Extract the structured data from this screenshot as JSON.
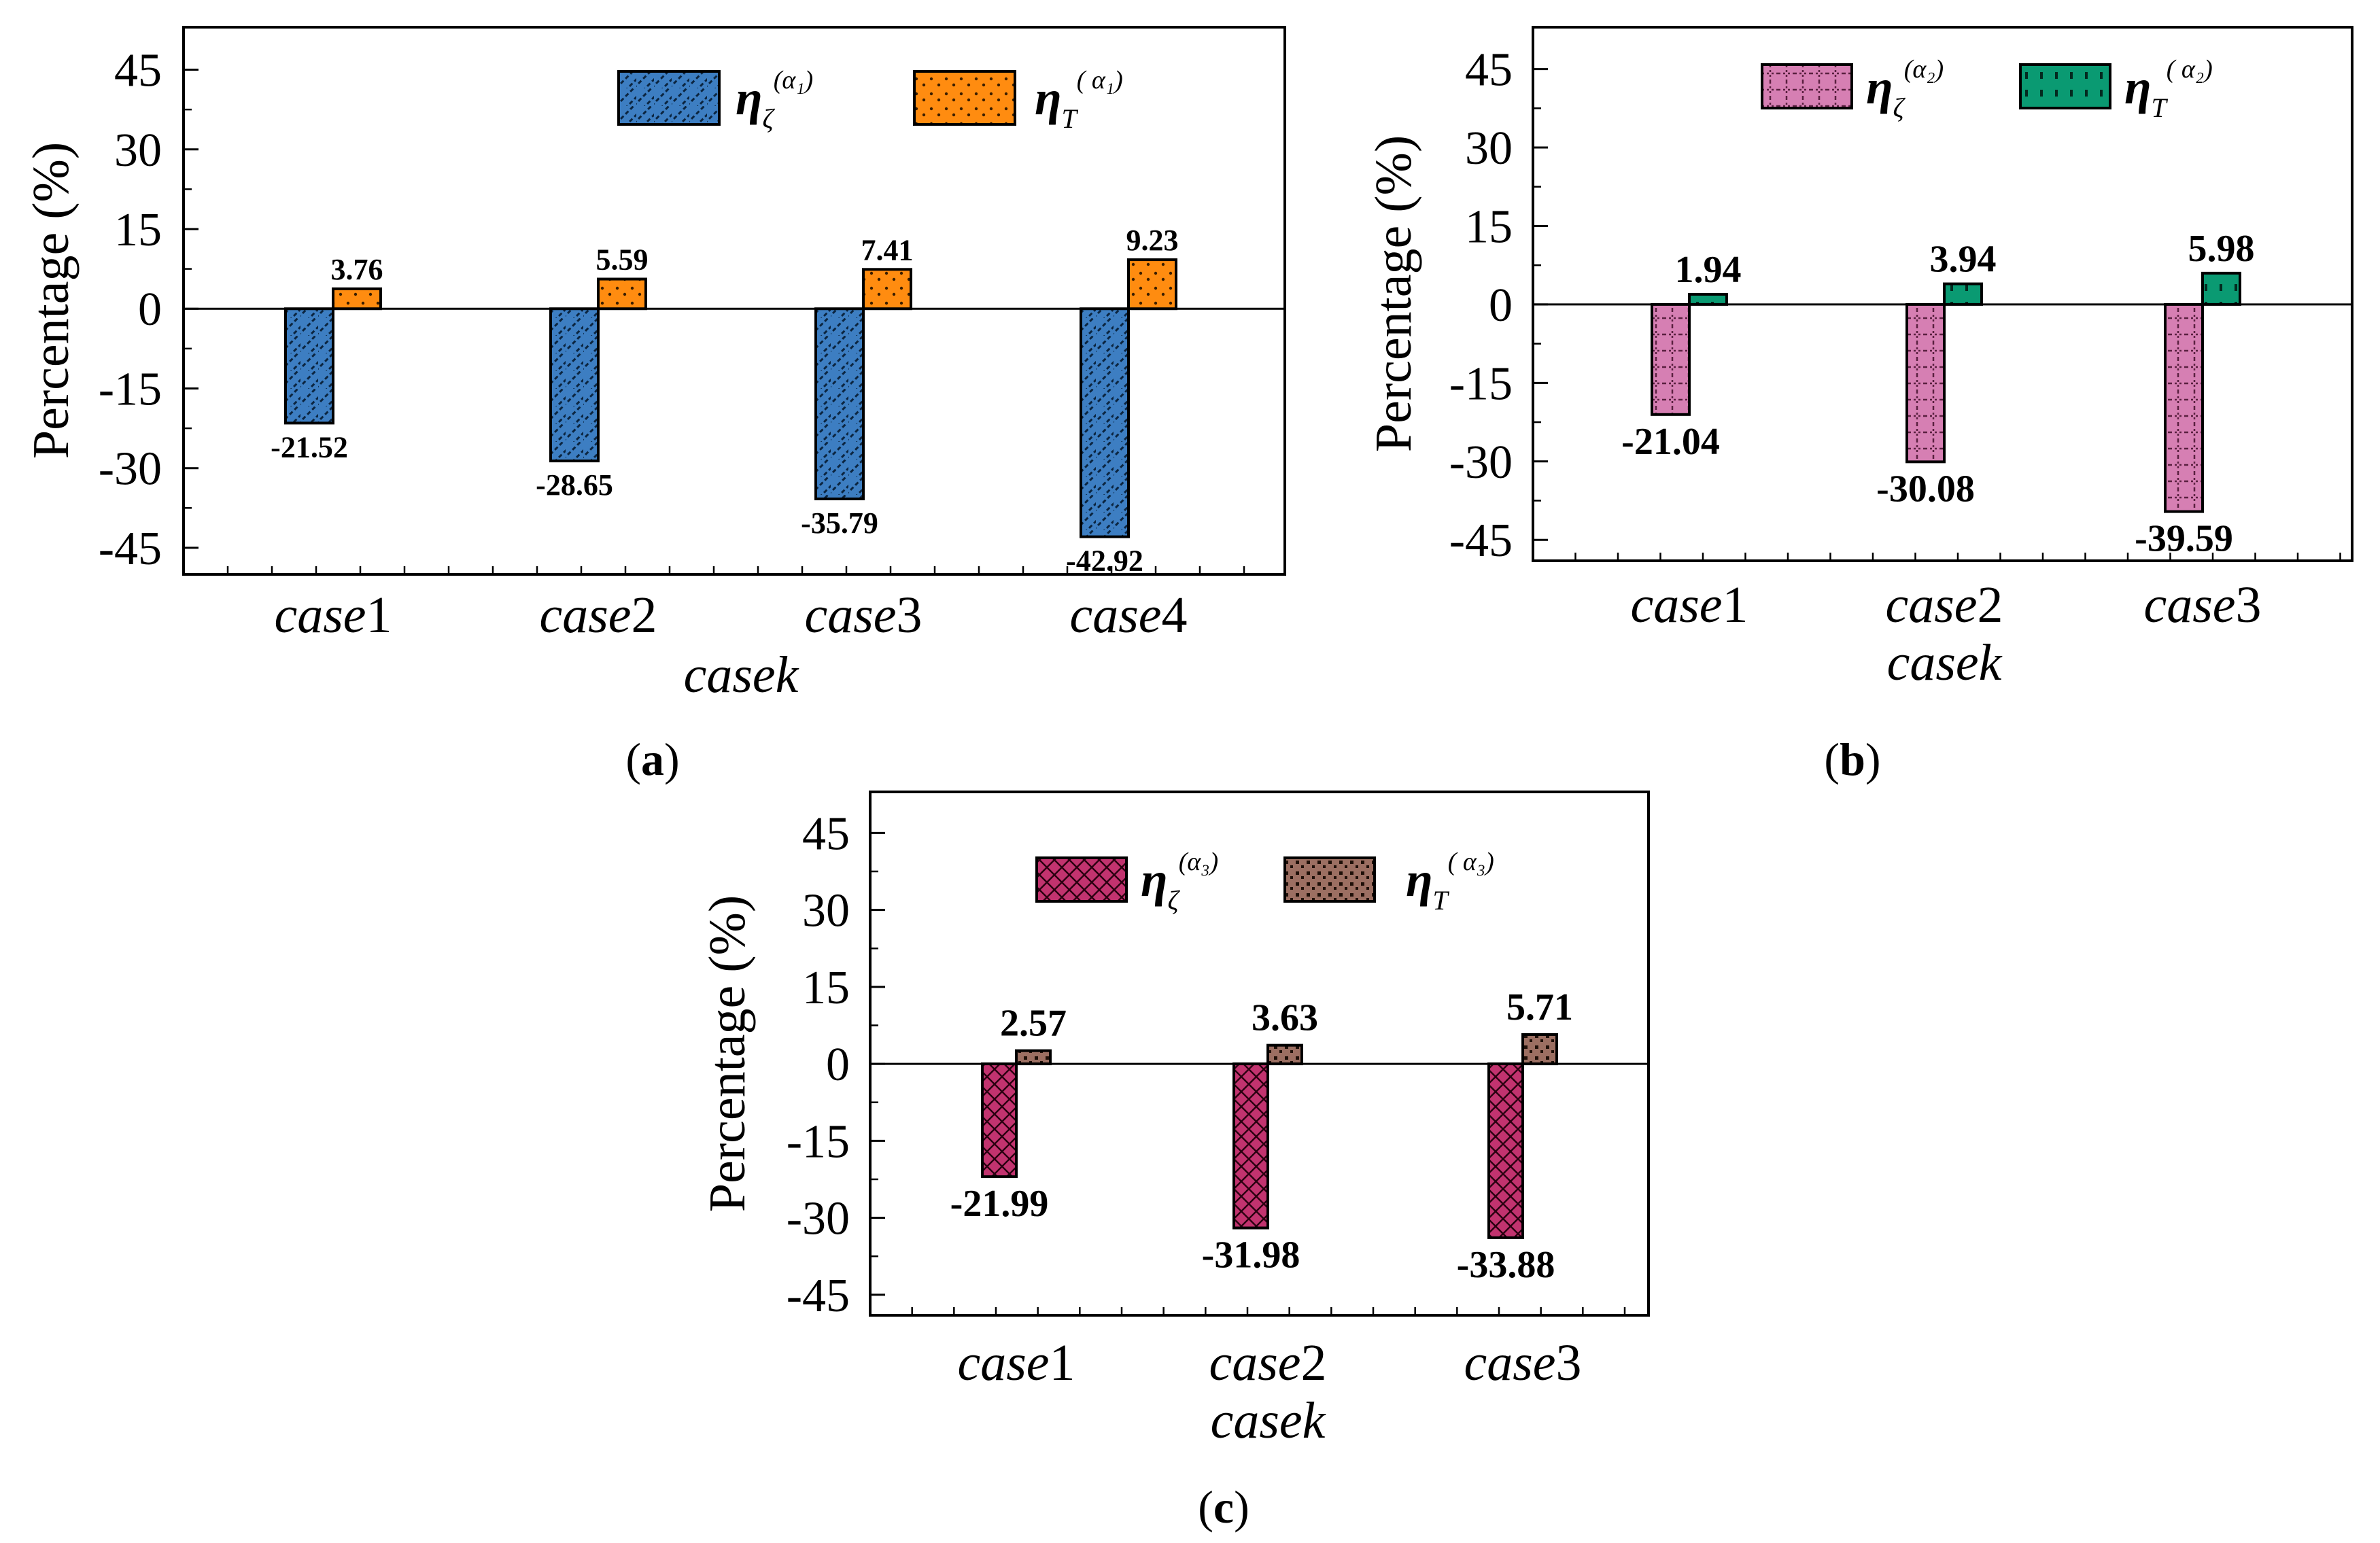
{
  "chart_data": [
    {
      "type": "bar",
      "panel_label": "a",
      "categories": [
        "case1",
        "case2",
        "case3",
        "case4"
      ],
      "category_parts": [
        [
          "case",
          "1"
        ],
        [
          "case",
          "2"
        ],
        [
          "case",
          "3"
        ],
        [
          "case",
          "4"
        ]
      ],
      "xlabel": "casek",
      "ylabel": "Percentage (%)",
      "ylim": [
        -50,
        53
      ],
      "yticks": [
        45,
        30,
        15,
        0,
        -15,
        -30,
        -45
      ],
      "yticklabels": [
        "45",
        "30",
        "15",
        "0",
        "-15",
        "-30",
        "-45"
      ],
      "legend_position": "top-right",
      "series": [
        {
          "name": "η_ζ^(α1)",
          "legend": {
            "symbol": "η",
            "sub": "ζ",
            "sup": "(α₁)"
          },
          "values": [
            -21.52,
            -28.65,
            -35.79,
            -42.92
          ],
          "labels": [
            "-21.52",
            "-28.65",
            "-35.79",
            "-42.92"
          ],
          "color": "#3d7ec2",
          "pattern": "diagonal-hatch"
        },
        {
          "name": "η_T^(α1)",
          "legend": {
            "symbol": "η",
            "sub": "T",
            "sup": "( α₁)"
          },
          "values": [
            3.76,
            5.59,
            7.41,
            9.23
          ],
          "labels": [
            "3.76",
            "5.59",
            "7.41",
            "9.23"
          ],
          "color": "#ff8c10",
          "pattern": "dots"
        }
      ]
    },
    {
      "type": "bar",
      "panel_label": "b",
      "categories": [
        "case1",
        "case2",
        "case3"
      ],
      "category_parts": [
        [
          "case",
          "1"
        ],
        [
          "case",
          "2"
        ],
        [
          "case",
          "3"
        ]
      ],
      "xlabel": "casek",
      "ylabel": "Percentage (%)",
      "ylim": [
        -49,
        53
      ],
      "yticks": [
        45,
        30,
        15,
        0,
        -15,
        -30,
        -45
      ],
      "yticklabels": [
        "45",
        "30",
        "15",
        "0",
        "-15",
        "-30",
        "-45"
      ],
      "legend_position": "top",
      "series": [
        {
          "name": "η_ζ^(α2)",
          "legend": {
            "symbol": "η",
            "sub": "ζ",
            "sup": "(α₂)"
          },
          "values": [
            -21.04,
            -30.08,
            -39.59
          ],
          "labels": [
            "-21.04",
            "-30.08",
            "-39.59"
          ],
          "color": "#d67fb3",
          "pattern": "dotted-grid"
        },
        {
          "name": "η_T^(α2)",
          "legend": {
            "symbol": "η",
            "sub": "T",
            "sup": "( α₂)"
          },
          "values": [
            1.94,
            3.94,
            5.98
          ],
          "labels": [
            "1.94",
            "3.94",
            "5.98"
          ],
          "color": "#0a9a72",
          "pattern": "vertical-dashes"
        }
      ]
    },
    {
      "type": "bar",
      "panel_label": "c",
      "categories": [
        "case1",
        "case2",
        "case3"
      ],
      "category_parts": [
        [
          "case",
          "1"
        ],
        [
          "case",
          "2"
        ],
        [
          "case",
          "3"
        ]
      ],
      "xlabel": "casek",
      "ylabel": "Percentage (%)",
      "ylim": [
        -49,
        53
      ],
      "yticks": [
        45,
        30,
        15,
        0,
        -15,
        -30,
        -45
      ],
      "yticklabels": [
        "45",
        "30",
        "15",
        "0",
        "-15",
        "-30",
        "-45"
      ],
      "legend_position": "top",
      "series": [
        {
          "name": "η_ζ^(α3)",
          "legend": {
            "symbol": "η",
            "sub": "ζ",
            "sup": "(α₃)"
          },
          "values": [
            -21.99,
            -31.98,
            -33.88
          ],
          "labels": [
            "-21.99",
            "-31.98",
            "-33.88"
          ],
          "color": "#c2336f",
          "pattern": "cross-hatch"
        },
        {
          "name": "η_T^(α3)",
          "legend": {
            "symbol": "η",
            "sub": "T",
            "sup": "( α₃)"
          },
          "values": [
            2.57,
            3.63,
            5.71
          ],
          "labels": [
            "2.57",
            "3.63",
            "5.71"
          ],
          "color": "#9c6f62",
          "pattern": "dense-dots"
        }
      ]
    }
  ],
  "captions": {
    "a": {
      "open": "(",
      "letter": "a",
      "close": ")"
    },
    "b": {
      "open": "(",
      "letter": "b",
      "close": ")"
    },
    "c": {
      "open": "(",
      "letter": "c",
      "close": ")"
    }
  }
}
